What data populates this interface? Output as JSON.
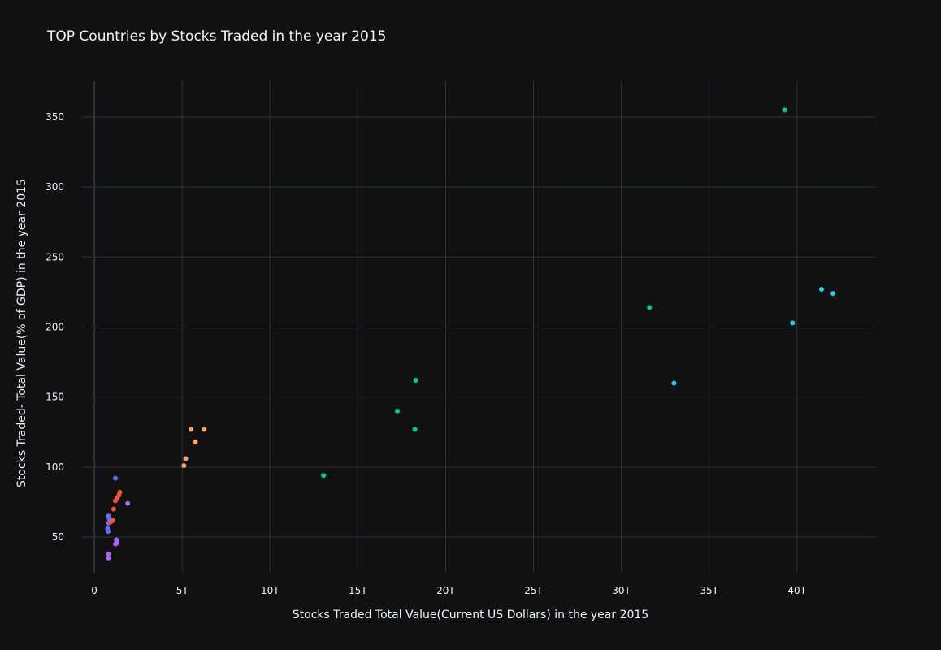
{
  "chart_data": {
    "type": "scatter",
    "title": "TOP Countries by Stocks Traded in the year 2015",
    "xlabel": "Stocks Traded Total Value(Current US Dollars) in the year 2015",
    "ylabel": "Stocks Traded- Total Value(% of GDP) in the year 2015",
    "xlim": [
      -0.7,
      44.5
    ],
    "ylim": [
      24.5,
      375.5
    ],
    "x_unit_suffix": "T",
    "x_ticks": [
      0,
      5,
      10,
      15,
      20,
      25,
      30,
      35,
      40
    ],
    "x_tick_labels": [
      "0",
      "5T",
      "10T",
      "15T",
      "20T",
      "25T",
      "30T",
      "35T",
      "40T"
    ],
    "y_ticks": [
      50,
      100,
      150,
      200,
      250,
      300,
      350
    ],
    "y_tick_labels": [
      "50",
      "100",
      "150",
      "200",
      "250",
      "300",
      "350"
    ],
    "grid": true,
    "legend": "none",
    "series": [
      {
        "color": "#636efa",
        "x": [
          1.2,
          0.8,
          0.85,
          0.8,
          0.75,
          0.78
        ],
        "y": [
          92,
          65,
          63,
          60,
          56,
          54
        ]
      },
      {
        "color": "#ef553b",
        "x": [
          1.45,
          1.4,
          1.3,
          1.2,
          1.1,
          1.05,
          0.95
        ],
        "y": [
          82,
          80,
          78,
          76,
          70,
          62,
          61
        ]
      },
      {
        "color": "#ab63fa",
        "x": [
          1.9,
          1.25,
          1.3,
          1.2,
          0.8,
          0.8
        ],
        "y": [
          74,
          48,
          46,
          45,
          38,
          35
        ]
      },
      {
        "color": "#ffa15a",
        "x": [
          5.5,
          6.25,
          5.75,
          5.2,
          5.1
        ],
        "y": [
          127,
          127,
          118,
          106,
          101
        ]
      },
      {
        "color": "#00cc96",
        "x": [
          39.3,
          31.6,
          18.3,
          17.25,
          18.25,
          13.05
        ],
        "y": [
          355,
          214,
          162,
          140,
          127,
          94
        ]
      },
      {
        "color": "#19d3f3",
        "x": [
          41.4,
          42.05,
          39.75,
          33.0
        ],
        "y": [
          227,
          224,
          203,
          160
        ]
      }
    ]
  }
}
